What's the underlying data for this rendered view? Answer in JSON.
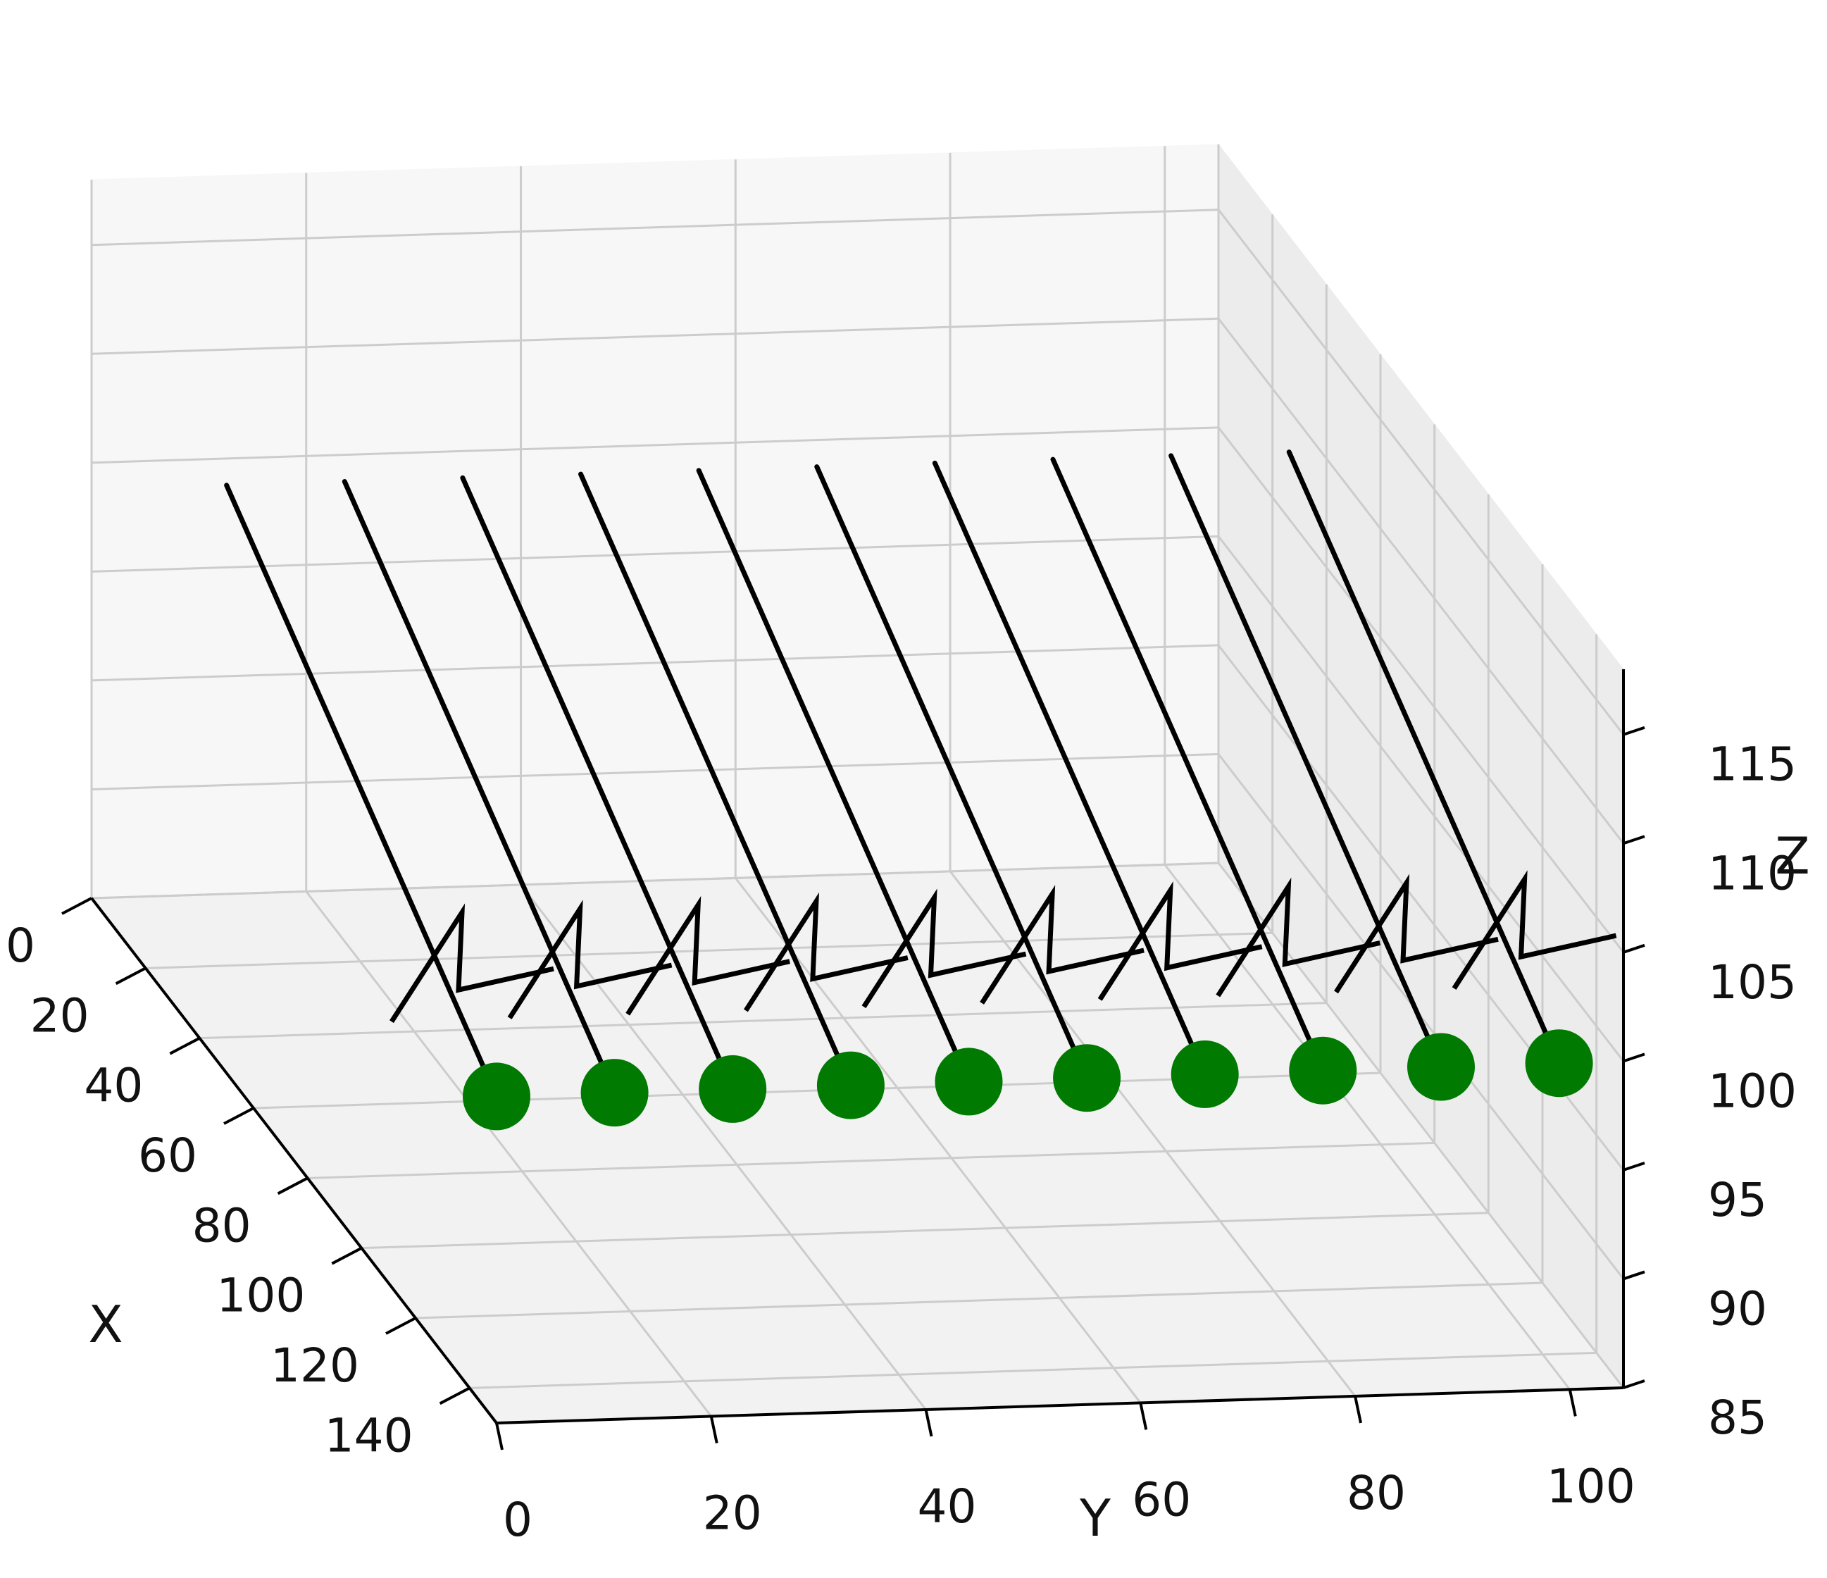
{
  "chart_data": {
    "type": "scatter",
    "subtype": "3d-scatter-with-direction-arrows",
    "title": "",
    "xlabel": "X",
    "ylabel": "Y",
    "zlabel": "Z",
    "xlim": [
      0,
      150
    ],
    "ylim": [
      0,
      105
    ],
    "zlim": [
      85,
      118
    ],
    "xticks": [
      "0",
      "20",
      "40",
      "60",
      "80",
      "100",
      "120",
      "140"
    ],
    "yticks": [
      "0",
      "20",
      "40",
      "60",
      "80",
      "100"
    ],
    "zticks": [
      "85",
      "90",
      "95",
      "100",
      "105",
      "110",
      "115"
    ],
    "grid": true,
    "points": {
      "color": "#007a00",
      "x": [
        150,
        150,
        150,
        150,
        150,
        150,
        150,
        150,
        150,
        150
      ],
      "y": [
        0,
        11,
        22,
        33,
        44,
        55,
        66,
        77,
        88,
        99
      ],
      "z": [
        100,
        100,
        100,
        100,
        100,
        100,
        100,
        100,
        100,
        100
      ]
    },
    "arrows": {
      "color": "#000000",
      "x": [
        150,
        150,
        150,
        150,
        150,
        150,
        150,
        150,
        150,
        150
      ],
      "y": [
        0,
        11,
        22,
        33,
        44,
        55,
        66,
        77,
        88,
        99
      ],
      "z": [
        100,
        100,
        100,
        100,
        100,
        100,
        100,
        100,
        100,
        100
      ],
      "dx": [
        -100,
        -100,
        -100,
        -100,
        -100,
        -100,
        -100,
        -100,
        -100,
        -100
      ],
      "dy": [
        0,
        0,
        0,
        0,
        0,
        0,
        0,
        0,
        0,
        0
      ],
      "dz": [
        12,
        12,
        12,
        12,
        12,
        12,
        12,
        12,
        12,
        12
      ]
    }
  }
}
